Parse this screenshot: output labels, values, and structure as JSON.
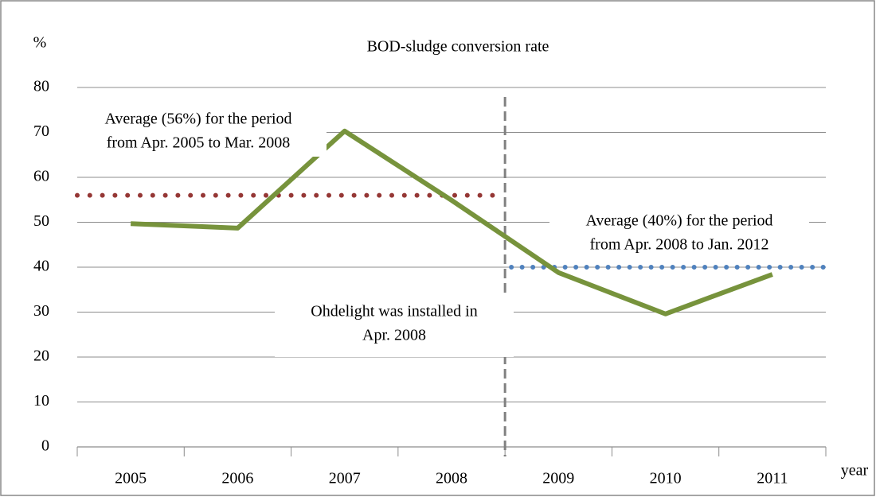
{
  "chart_data": {
    "type": "line",
    "title": "BOD-sludge conversion rate",
    "y_label": "%",
    "x_label": "year",
    "categories": [
      "2005",
      "2006",
      "2007",
      "2008",
      "2009",
      "2010",
      "2011"
    ],
    "series": [
      {
        "name": "BOD-sludge conversion rate",
        "color": "#77933c",
        "values": [
          49.7,
          48.7,
          70.3,
          54.9,
          38.8,
          29.6,
          38.4
        ]
      }
    ],
    "ylim": [
      0,
      80
    ],
    "yticks": [
      0,
      10,
      20,
      30,
      40,
      50,
      60,
      70,
      80
    ],
    "grid": true,
    "reference_lines": [
      {
        "value": 56,
        "color": "#953735",
        "label": [
          "Average (56%) for the period",
          "from Apr. 2005 to Mar. 2008"
        ]
      },
      {
        "value": 40,
        "color": "#4f81bd",
        "label": [
          "Average (40%) for the period",
          "from Apr. 2008 to Jan. 2012"
        ]
      }
    ],
    "event": {
      "label": [
        "Ohdelight was installed in",
        "Apr. 2008"
      ],
      "color": "#808080"
    }
  }
}
